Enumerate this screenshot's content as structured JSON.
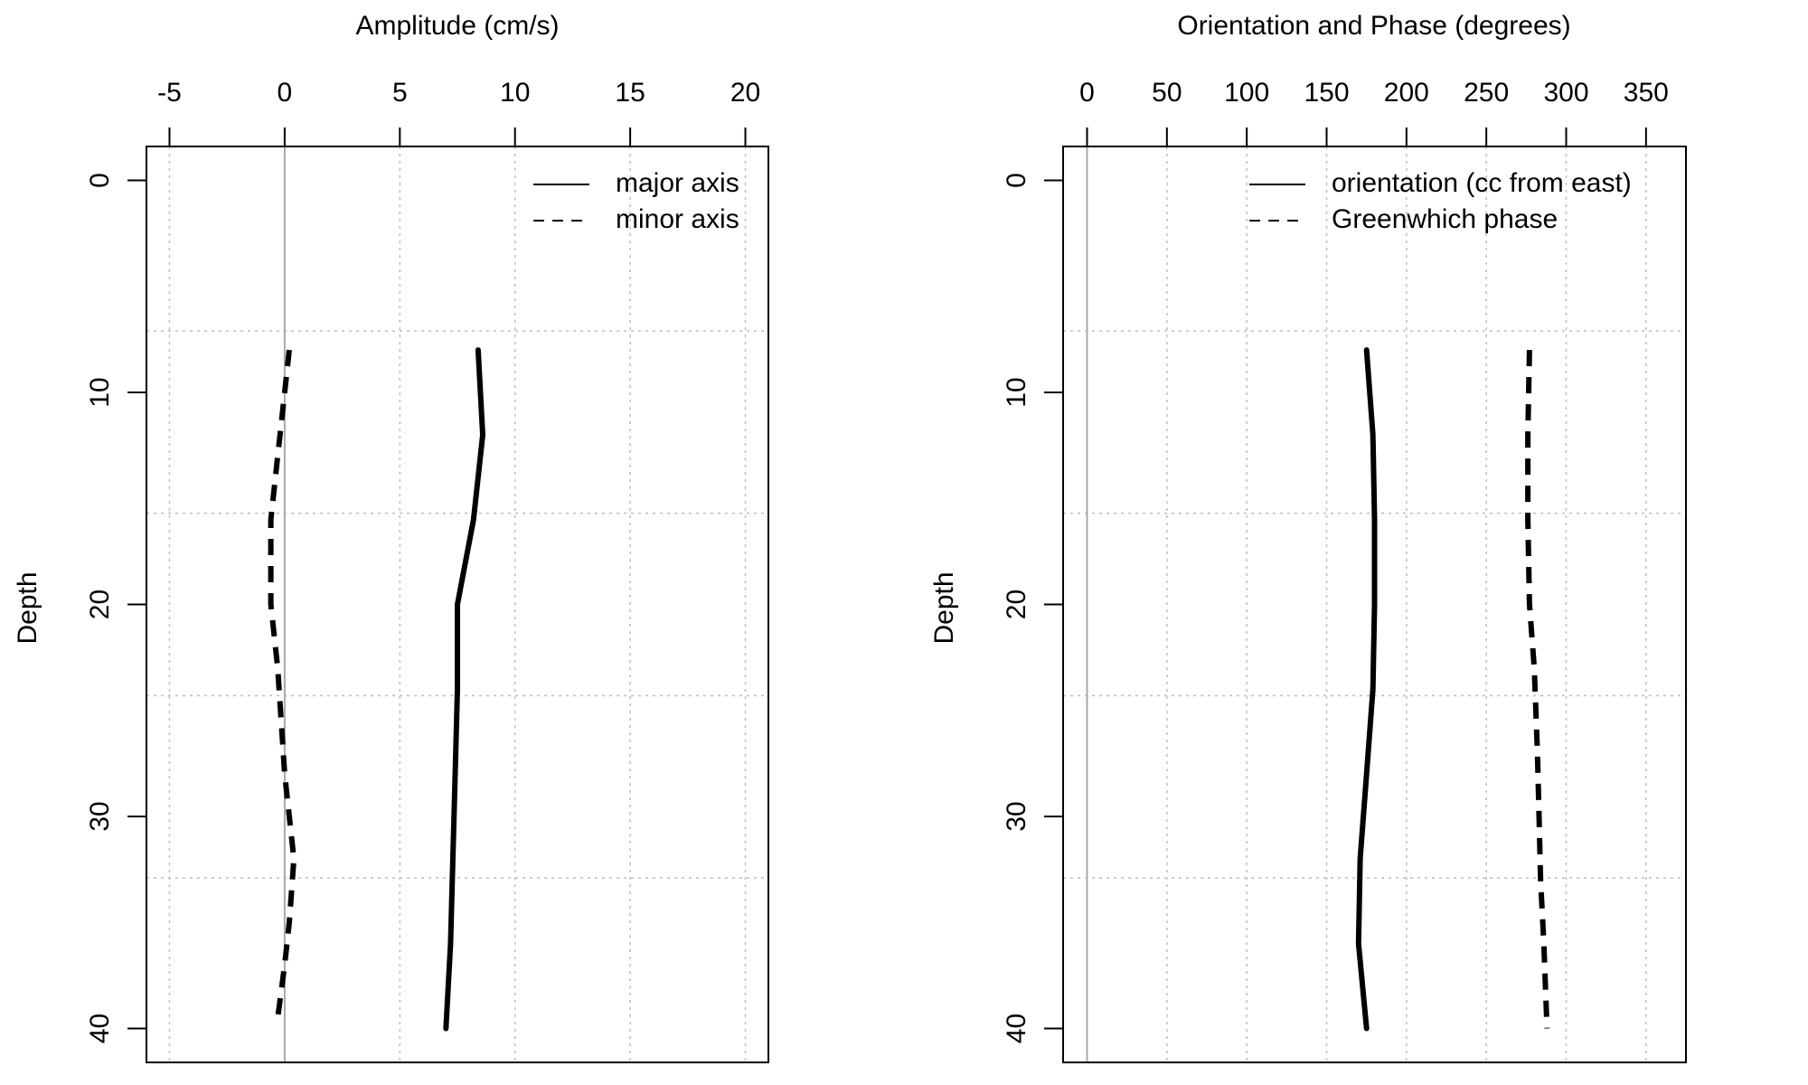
{
  "chart_data": [
    {
      "type": "line",
      "orientation": "depth-profile",
      "title": "Amplitude (cm/s)",
      "ylabel": "Depth",
      "xlabel": "",
      "xlim": [
        -6,
        21
      ],
      "ylim": [
        41.6,
        -1.6
      ],
      "x_ticks": [
        -5,
        0,
        5,
        10,
        15,
        20
      ],
      "x_tick_labels": [
        "-5",
        "0",
        "5",
        "10",
        "15",
        "20"
      ],
      "y_ticks": [
        0,
        10,
        20,
        30,
        40
      ],
      "y_tick_labels": [
        "0",
        "10",
        "20",
        "30",
        "40"
      ],
      "h_grid_depths": [
        7.1,
        15.7,
        24.3,
        32.9
      ],
      "grid": true,
      "zero_line_x": 0,
      "legend_position": "top-right",
      "series": [
        {
          "name": "major axis",
          "line_style": "solid",
          "x": [
            8.4,
            8.6,
            8.2,
            7.5,
            7.5,
            7.4,
            7.2,
            7.0
          ],
          "y": [
            8,
            12,
            16,
            20,
            24,
            28,
            36,
            40
          ]
        },
        {
          "name": "minor axis",
          "line_style": "dashed",
          "x": [
            0.2,
            0.0,
            -0.3,
            -0.6,
            -0.6,
            -0.3,
            0.0,
            0.4,
            0.2,
            0.0,
            -0.3
          ],
          "y": [
            8,
            10,
            13,
            16,
            20,
            23,
            28,
            32,
            35,
            37,
            39.5
          ]
        }
      ]
    },
    {
      "type": "line",
      "orientation": "depth-profile",
      "title": "Orientation and Phase (degrees)",
      "ylabel": "Depth",
      "xlabel": "",
      "xlim": [
        -15,
        375
      ],
      "ylim": [
        41.6,
        -1.6
      ],
      "x_ticks": [
        0,
        50,
        100,
        150,
        200,
        250,
        300,
        350
      ],
      "x_tick_labels": [
        "0",
        "50",
        "100",
        "150",
        "200",
        "250",
        "300",
        "350"
      ],
      "y_ticks": [
        0,
        10,
        20,
        30,
        40
      ],
      "y_tick_labels": [
        "0",
        "10",
        "20",
        "30",
        "40"
      ],
      "h_grid_depths": [
        7.1,
        15.7,
        24.3,
        32.9
      ],
      "grid": true,
      "zero_line_x": 0,
      "legend_position": "top-right",
      "series": [
        {
          "name": "orientation (cc from east)",
          "line_style": "solid",
          "x": [
            175,
            179,
            180,
            180,
            179,
            175,
            171,
            170,
            175
          ],
          "y": [
            8,
            12,
            16,
            20,
            24,
            28,
            32,
            36,
            40
          ]
        },
        {
          "name": "Greenwhich phase",
          "line_style": "dashed",
          "x": [
            277,
            276,
            276,
            277,
            280,
            282,
            283,
            284,
            286,
            288
          ],
          "y": [
            8,
            12,
            16,
            20,
            23,
            27,
            30,
            33,
            36,
            40
          ]
        }
      ]
    }
  ]
}
